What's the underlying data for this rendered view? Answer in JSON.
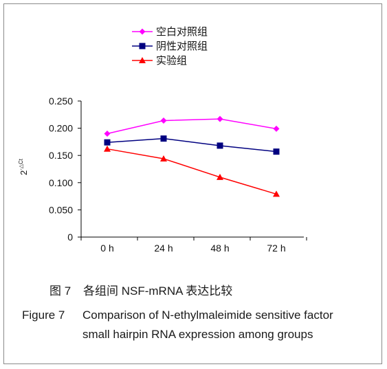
{
  "chart_data": {
    "type": "line",
    "ylabel": "2-△Ct",
    "ylabel_base": "2",
    "ylabel_exp": "-△Ct",
    "xlabel": "",
    "categories": [
      "0 h",
      "24 h",
      "48 h",
      "72 h"
    ],
    "ylim": [
      0,
      0.25
    ],
    "yticks": [
      "0",
      "0.050",
      "0.100",
      "0.150",
      "0.200",
      "0.250"
    ],
    "ytick_values": [
      0,
      0.05,
      0.1,
      0.15,
      0.2,
      0.25
    ],
    "grid": false,
    "legend_position": "top",
    "series": [
      {
        "name": "空白对照组",
        "color": "#ff00ff",
        "marker": "diamond",
        "values": [
          0.19,
          0.214,
          0.217,
          0.199
        ]
      },
      {
        "name": "阴性对照组",
        "color": "#000080",
        "marker": "square",
        "values": [
          0.174,
          0.181,
          0.168,
          0.157
        ]
      },
      {
        "name": "实验组",
        "color": "#ff0000",
        "marker": "triangle",
        "values": [
          0.162,
          0.144,
          0.11,
          0.079
        ]
      }
    ]
  },
  "caption": {
    "cn_label": "图 7",
    "cn_text": "各组间 NSF-mRNA 表达比较",
    "en_label": "Figure 7",
    "en_line1": "Comparison of N-ethylmaleimide sensitive factor",
    "en_line2": "small hairpin RNA expression among groups"
  }
}
